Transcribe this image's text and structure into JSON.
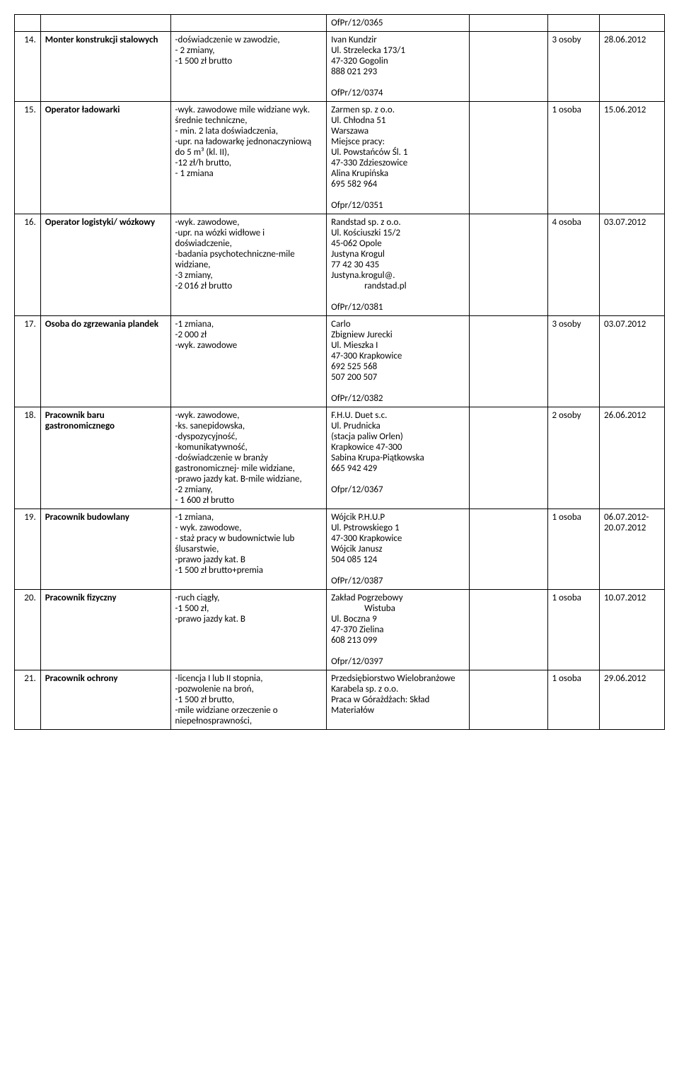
{
  "topTrail": "OfPr/12/0365",
  "rows": [
    {
      "num": "14.",
      "title": "Monter konstrukcji stalowych",
      "req": "-doświadczenie w zawodzie,\n- 2 zmiany,\n-1 500 zł brutto",
      "contact": "Ivan Kundzir\nUl. Strzelecka 173/1\n47-320 Gogolin\n888 021 293\n\nOfPr/12/0374",
      "count": "3 osoby",
      "date": "28.06.2012"
    },
    {
      "num": "15.",
      "title": "Operator ładowarki",
      "req": "-wyk. zawodowe mile widziane wyk. średnie techniczne,\n- min. 2 lata doświadczenia,\n-upr. na ładowarkę jednonaczyniową do 5 m³ (kl. II),\n-12 zł/h brutto,\n- 1 zmiana",
      "contact": "Zarmen sp. z o.o.\nUl. Chłodna 51\nWarszawa\nMiejsce pracy:\nUl. Powstańców Śl. 1\n47-330 Zdzieszowice\nAlina Krupińska\n695 582 964\n\nOfpr/12/0351",
      "count": "1 osoba",
      "date": "15.06.2012"
    },
    {
      "num": "16.",
      "title": "Operator logistyki/ wózkowy",
      "req": "-wyk. zawodowe,\n-upr. na wózki widłowe i doświadczenie,\n-badania psychotechniczne-mile widziane,\n-3 zmiany,\n-2 016 zł brutto",
      "contact": "Randstad sp. z o.o.\nUl. Kościuszki 15/2\n45-062 Opole\nJustyna Krogul\n77 42 30 435\nJustyna.krogul@.\n                randstad.pl\n\nOfPr/12/0381",
      "count": "4 osoba",
      "date": "03.07.2012"
    },
    {
      "num": "17.",
      "title": "Osoba do zgrzewania plandek",
      "req": "-1 zmiana,\n-2 000 zł\n-wyk. zawodowe",
      "contact": "Carlo\nZbigniew Jurecki\nUl. Mieszka I\n47-300 Krapkowice\n692 525 568\n507 200 507\n\nOfPr/12/0382",
      "count": "3 osoby",
      "date": "03.07.2012"
    },
    {
      "num": "18.",
      "title": "Pracownik baru gastronomicznego",
      "req": "-wyk. zawodowe,\n-ks. sanepidowska,\n-dyspozycyjność,\n-komunikatywność,\n-doświadczenie w branży gastronomicznej- mile widziane,\n-prawo jazdy kat. B-mile widziane,\n-2 zmiany,\n- 1 600 zł brutto",
      "contact": "F.H.U. Duet s.c.\nUl. Prudnicka\n(stacja paliw Orlen)\nKrapkowice 47-300\nSabina Krupa-Piątkowska\n665 942 429\n\nOfpr/12/0367",
      "count": "2 osoby",
      "date": "26.06.2012"
    },
    {
      "num": "19.",
      "title": "Pracownik budowlany",
      "req": "-1 zmiana,\n- wyk. zawodowe,\n- staż pracy w budownictwie lub ślusarstwie,\n-prawo jazdy kat. B\n-1 500 zł brutto+premia",
      "contact": "Wójcik P.H.U.P\nUl. Pstrowskiego 1\n47-300 Krapkowice\nWójcik Janusz\n504 085 124\n\nOfPr/12/0387",
      "count": "1 osoba",
      "date": "06.07.2012-20.07.2012"
    },
    {
      "num": "20.",
      "title": "Pracownik fizyczny",
      "req": "-ruch ciągły,\n-1 500 zł,\n-prawo jazdy kat. B",
      "contact": "Zakład Pogrzebowy\n                Wistuba\nUl. Boczna 9\n47-370 Zielina\n608 213 099\n\nOfpr/12/0397",
      "count": "1 osoba",
      "date": "10.07.2012"
    },
    {
      "num": "21.",
      "title": "Pracownik ochrony",
      "req": "-licencja I lub II stopnia,\n-pozwolenie na broń,\n-1 500 zł brutto,\n-mile widziane orzeczenie o niepełnosprawności,",
      "contact": "Przedsiębiorstwo Wielobranżowe Karabela sp. z o.o.\nPraca w Górażdżach: Skład Materiałów",
      "count": "1 osoba",
      "date": "29.06.2012"
    }
  ]
}
